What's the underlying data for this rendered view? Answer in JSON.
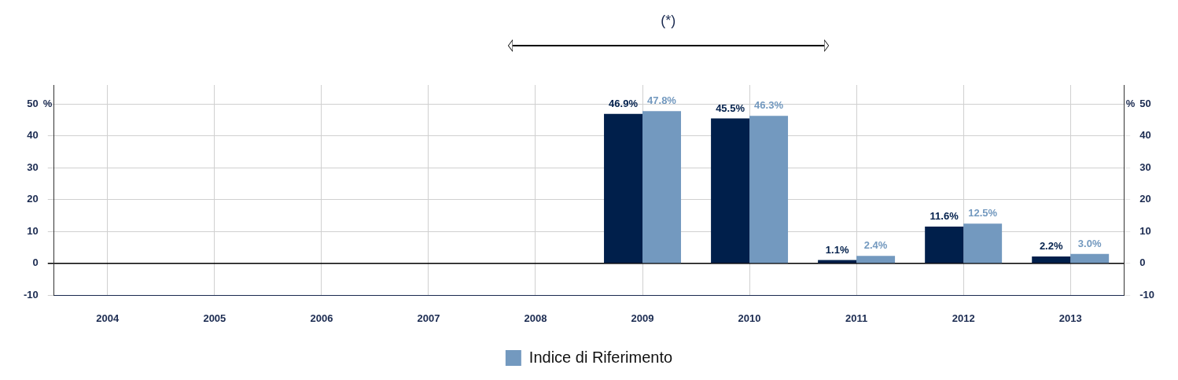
{
  "chart_data": {
    "type": "bar",
    "categories": [
      "2004",
      "2005",
      "2006",
      "2007",
      "2008",
      "2009",
      "2010",
      "2011",
      "2012",
      "2013"
    ],
    "series": [
      {
        "color": "#001f4b",
        "values": [
          null,
          null,
          null,
          null,
          null,
          46.9,
          45.5,
          1.1,
          11.6,
          2.2
        ],
        "value_labels": [
          null,
          null,
          null,
          null,
          null,
          "46.9%",
          "45.5%",
          "1.1%",
          "11.6%",
          "2.2%"
        ]
      },
      {
        "name": "Indice di Riferimento",
        "color": "#7399bf",
        "values": [
          null,
          null,
          null,
          null,
          null,
          47.8,
          46.3,
          2.4,
          12.5,
          3.0
        ],
        "value_labels": [
          null,
          null,
          null,
          null,
          null,
          "47.8%",
          "46.3%",
          "2.4%",
          "12.5%",
          "3.0%"
        ]
      }
    ],
    "ylabel": "%",
    "y2label": "%",
    "ylim": [
      -10,
      56
    ],
    "yticks": [
      -10,
      0,
      10,
      20,
      30,
      40,
      50
    ],
    "y2lim": [
      -10,
      56
    ],
    "y2ticks": [
      -10,
      0,
      10,
      20,
      30,
      40,
      50
    ],
    "grid": true,
    "legend": "bottom",
    "annotations": [
      "(*)"
    ]
  }
}
